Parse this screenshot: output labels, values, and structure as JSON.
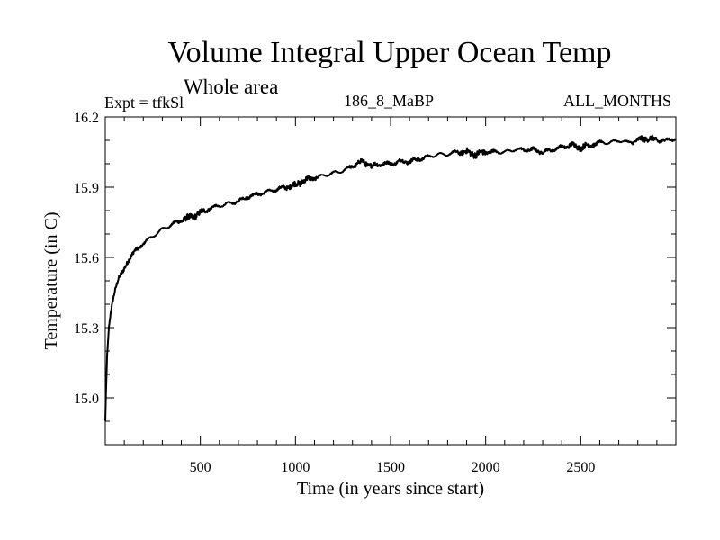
{
  "header": {
    "title": "Volume Integral Upper Ocean Temp",
    "subtitle": "Whole area",
    "expt": "Expt = tfkSl",
    "run": "186_8_MaBP",
    "months": "ALL_MONTHS"
  },
  "chart_data": {
    "type": "line",
    "title": "Volume Integral Upper Ocean Temp",
    "xlabel": "Time (in years since start)",
    "ylabel": "Temperature (in C)",
    "xlim": [
      0,
      3000
    ],
    "ylim": [
      14.8,
      16.2
    ],
    "x_ticks": [
      500,
      1000,
      1500,
      2000,
      2500
    ],
    "y_ticks": [
      15.0,
      15.3,
      15.6,
      15.9,
      16.2
    ],
    "y_tick_labels": [
      "15.0",
      "15.3",
      "15.6",
      "15.9",
      "16.2"
    ],
    "grid": false,
    "series": [
      {
        "name": "Volume Integral Upper Ocean Temp",
        "x": [
          0,
          5,
          10,
          20,
          30,
          40,
          50,
          60,
          70,
          80,
          90,
          100,
          120,
          150,
          200,
          250,
          300,
          350,
          400,
          450,
          500,
          550,
          600,
          650,
          700,
          750,
          800,
          850,
          900,
          950,
          1000,
          1050,
          1100,
          1150,
          1200,
          1250,
          1300,
          1350,
          1400,
          1450,
          1500,
          1550,
          1600,
          1650,
          1700,
          1750,
          1800,
          1850,
          1900,
          1950,
          2000,
          2050,
          2100,
          2150,
          2200,
          2250,
          2300,
          2350,
          2400,
          2450,
          2500,
          2550,
          2600,
          2650,
          2700,
          2750,
          2800,
          2850,
          2900,
          2950,
          3000
        ],
        "values": [
          14.9,
          15.05,
          15.18,
          15.3,
          15.37,
          15.42,
          15.46,
          15.49,
          15.51,
          15.52,
          15.53,
          15.55,
          15.59,
          15.62,
          15.66,
          15.69,
          15.72,
          15.74,
          15.76,
          15.77,
          15.79,
          15.81,
          15.82,
          15.83,
          15.84,
          15.86,
          15.87,
          15.88,
          15.89,
          15.9,
          15.91,
          15.93,
          15.94,
          15.95,
          15.96,
          15.97,
          15.99,
          16.01,
          15.99,
          16.0,
          16.0,
          16.01,
          16.01,
          16.02,
          16.03,
          16.04,
          16.04,
          16.05,
          16.05,
          16.04,
          16.05,
          16.05,
          16.05,
          16.06,
          16.06,
          16.06,
          16.05,
          16.06,
          16.07,
          16.08,
          16.07,
          16.08,
          16.09,
          16.09,
          16.1,
          16.09,
          16.1,
          16.11,
          16.1,
          16.1,
          16.11
        ]
      }
    ]
  }
}
